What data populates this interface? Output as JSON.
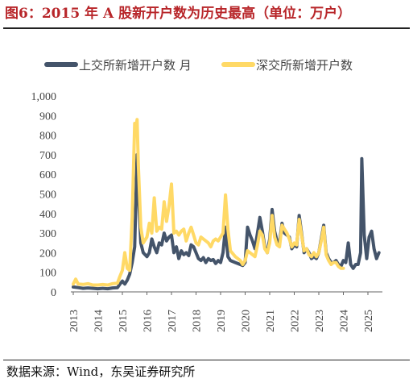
{
  "title": "图6：2015 年 A 股新开户数为历史最高（单位：万户）",
  "source": "数据来源：Wind，东吴证券研究所",
  "colors": {
    "title": "#b8262a",
    "series1": "#44546a",
    "series2": "#ffd966",
    "axis": "#444444"
  },
  "chart_data": {
    "type": "line",
    "ylim": [
      0,
      1000
    ],
    "yticks": [
      "0",
      "100",
      "200",
      "300",
      "400",
      "500",
      "600",
      "700",
      "800",
      "900",
      "1,000"
    ],
    "xticks": [
      "2013",
      "2014",
      "2015",
      "2016",
      "2017",
      "2018",
      "2019",
      "2020",
      "2021",
      "2022",
      "2023",
      "2024",
      "2025"
    ],
    "grid": false,
    "legend_position": "top",
    "series": [
      {
        "name": "上交所新增开户数 月",
        "points": [
          [
            2013.0,
            25
          ],
          [
            2013.2,
            22
          ],
          [
            2013.4,
            18
          ],
          [
            2013.6,
            20
          ],
          [
            2013.8,
            18
          ],
          [
            2014.0,
            16
          ],
          [
            2014.2,
            18
          ],
          [
            2014.4,
            16
          ],
          [
            2014.6,
            20
          ],
          [
            2014.8,
            22
          ],
          [
            2014.9,
            40
          ],
          [
            2015.0,
            55
          ],
          [
            2015.1,
            40
          ],
          [
            2015.2,
            60
          ],
          [
            2015.3,
            90
          ],
          [
            2015.4,
            150
          ],
          [
            2015.5,
            230
          ],
          [
            2015.6,
            700
          ],
          [
            2015.65,
            520
          ],
          [
            2015.75,
            250
          ],
          [
            2015.85,
            200
          ],
          [
            2016.0,
            180
          ],
          [
            2016.1,
            200
          ],
          [
            2016.2,
            270
          ],
          [
            2016.3,
            230
          ],
          [
            2016.4,
            200
          ],
          [
            2016.5,
            250
          ],
          [
            2016.6,
            240
          ],
          [
            2016.7,
            300
          ],
          [
            2016.8,
            260
          ],
          [
            2016.9,
            280
          ],
          [
            2017.0,
            290
          ],
          [
            2017.1,
            200
          ],
          [
            2017.2,
            230
          ],
          [
            2017.3,
            170
          ],
          [
            2017.4,
            210
          ],
          [
            2017.5,
            190
          ],
          [
            2017.6,
            200
          ],
          [
            2017.7,
            185
          ],
          [
            2017.8,
            240
          ],
          [
            2017.9,
            230
          ],
          [
            2018.0,
            200
          ],
          [
            2018.1,
            170
          ],
          [
            2018.2,
            160
          ],
          [
            2018.3,
            175
          ],
          [
            2018.4,
            150
          ],
          [
            2018.5,
            170
          ],
          [
            2018.6,
            160
          ],
          [
            2018.7,
            165
          ],
          [
            2018.8,
            145
          ],
          [
            2018.9,
            160
          ],
          [
            2019.0,
            150
          ],
          [
            2019.1,
            200
          ],
          [
            2019.2,
            330
          ],
          [
            2019.3,
            180
          ],
          [
            2019.4,
            160
          ],
          [
            2019.6,
            150
          ],
          [
            2019.8,
            140
          ],
          [
            2019.9,
            135
          ],
          [
            2020.0,
            150
          ],
          [
            2020.1,
            330
          ],
          [
            2020.2,
            290
          ],
          [
            2020.3,
            260
          ],
          [
            2020.4,
            220
          ],
          [
            2020.5,
            300
          ],
          [
            2020.6,
            380
          ],
          [
            2020.7,
            310
          ],
          [
            2020.8,
            230
          ],
          [
            2020.9,
            200
          ],
          [
            2021.0,
            270
          ],
          [
            2021.1,
            420
          ],
          [
            2021.2,
            310
          ],
          [
            2021.3,
            260
          ],
          [
            2021.4,
            250
          ],
          [
            2021.5,
            350
          ],
          [
            2021.6,
            300
          ],
          [
            2021.7,
            290
          ],
          [
            2021.8,
            280
          ],
          [
            2021.9,
            220
          ],
          [
            2022.0,
            240
          ],
          [
            2022.1,
            230
          ],
          [
            2022.2,
            390
          ],
          [
            2022.3,
            300
          ],
          [
            2022.4,
            200
          ],
          [
            2022.5,
            220
          ],
          [
            2022.6,
            200
          ],
          [
            2022.7,
            170
          ],
          [
            2022.8,
            180
          ],
          [
            2022.9,
            170
          ],
          [
            2023.0,
            200
          ],
          [
            2023.1,
            270
          ],
          [
            2023.2,
            340
          ],
          [
            2023.3,
            200
          ],
          [
            2023.4,
            170
          ],
          [
            2023.5,
            150
          ],
          [
            2023.6,
            150
          ],
          [
            2023.7,
            160
          ],
          [
            2023.8,
            140
          ],
          [
            2023.9,
            130
          ],
          [
            2024.0,
            160
          ],
          [
            2024.1,
            150
          ],
          [
            2024.2,
            250
          ],
          [
            2024.3,
            140
          ],
          [
            2024.4,
            120
          ],
          [
            2024.5,
            140
          ],
          [
            2024.6,
            140
          ],
          [
            2024.7,
            200
          ],
          [
            2024.75,
            680
          ],
          [
            2024.85,
            290
          ],
          [
            2024.95,
            170
          ],
          [
            2025.05,
            280
          ],
          [
            2025.15,
            310
          ],
          [
            2025.25,
            220
          ],
          [
            2025.35,
            170
          ],
          [
            2025.45,
            200
          ]
        ]
      },
      {
        "name": "深交所新增开户数",
        "points": [
          [
            2013.0,
            40
          ],
          [
            2013.1,
            65
          ],
          [
            2013.2,
            40
          ],
          [
            2013.4,
            38
          ],
          [
            2013.6,
            42
          ],
          [
            2013.8,
            35
          ],
          [
            2014.0,
            35
          ],
          [
            2014.2,
            38
          ],
          [
            2014.4,
            35
          ],
          [
            2014.6,
            42
          ],
          [
            2014.8,
            45
          ],
          [
            2014.9,
            80
          ],
          [
            2015.0,
            110
          ],
          [
            2015.1,
            200
          ],
          [
            2015.2,
            120
          ],
          [
            2015.3,
            110
          ],
          [
            2015.4,
            380
          ],
          [
            2015.5,
            860
          ],
          [
            2015.55,
            830
          ],
          [
            2015.6,
            880
          ],
          [
            2015.65,
            650
          ],
          [
            2015.75,
            330
          ],
          [
            2015.85,
            250
          ],
          [
            2016.0,
            280
          ],
          [
            2016.1,
            350
          ],
          [
            2016.2,
            300
          ],
          [
            2016.3,
            480
          ],
          [
            2016.4,
            310
          ],
          [
            2016.5,
            330
          ],
          [
            2016.6,
            320
          ],
          [
            2016.7,
            460
          ],
          [
            2016.8,
            360
          ],
          [
            2016.9,
            440
          ],
          [
            2017.0,
            550
          ],
          [
            2017.1,
            300
          ],
          [
            2017.2,
            310
          ],
          [
            2017.3,
            290
          ],
          [
            2017.4,
            310
          ],
          [
            2017.5,
            320
          ],
          [
            2017.6,
            260
          ],
          [
            2017.7,
            300
          ],
          [
            2017.8,
            330
          ],
          [
            2017.9,
            290
          ],
          [
            2018.0,
            250
          ],
          [
            2018.1,
            240
          ],
          [
            2018.2,
            280
          ],
          [
            2018.3,
            270
          ],
          [
            2018.4,
            260
          ],
          [
            2018.5,
            250
          ],
          [
            2018.6,
            230
          ],
          [
            2018.7,
            260
          ],
          [
            2018.8,
            270
          ],
          [
            2018.9,
            260
          ],
          [
            2019.0,
            280
          ],
          [
            2019.1,
            300
          ],
          [
            2019.2,
            495
          ],
          [
            2019.3,
            320
          ],
          [
            2019.4,
            210
          ],
          [
            2019.6,
            180
          ],
          [
            2019.8,
            160
          ],
          [
            2019.9,
            140
          ],
          [
            2020.0,
            160
          ],
          [
            2020.1,
            210
          ],
          [
            2020.2,
            200
          ],
          [
            2020.3,
            190
          ],
          [
            2020.4,
            180
          ],
          [
            2020.5,
            240
          ],
          [
            2020.6,
            310
          ],
          [
            2020.7,
            290
          ],
          [
            2020.8,
            220
          ],
          [
            2020.9,
            200
          ],
          [
            2021.0,
            250
          ],
          [
            2021.1,
            390
          ],
          [
            2021.2,
            280
          ],
          [
            2021.3,
            240
          ],
          [
            2021.4,
            230
          ],
          [
            2021.5,
            340
          ],
          [
            2021.6,
            320
          ],
          [
            2021.7,
            300
          ],
          [
            2021.8,
            270
          ],
          [
            2021.9,
            230
          ],
          [
            2022.0,
            250
          ],
          [
            2022.1,
            240
          ],
          [
            2022.2,
            370
          ],
          [
            2022.3,
            290
          ],
          [
            2022.4,
            210
          ],
          [
            2022.5,
            220
          ],
          [
            2022.6,
            190
          ],
          [
            2022.7,
            180
          ],
          [
            2022.8,
            200
          ],
          [
            2022.9,
            180
          ],
          [
            2023.0,
            200
          ],
          [
            2023.1,
            260
          ],
          [
            2023.2,
            330
          ],
          [
            2023.3,
            190
          ],
          [
            2023.4,
            160
          ],
          [
            2023.5,
            140
          ],
          [
            2023.6,
            150
          ],
          [
            2023.7,
            150
          ],
          [
            2023.8,
            130
          ],
          [
            2023.9,
            120
          ],
          [
            2024.0,
            120
          ]
        ]
      }
    ]
  }
}
